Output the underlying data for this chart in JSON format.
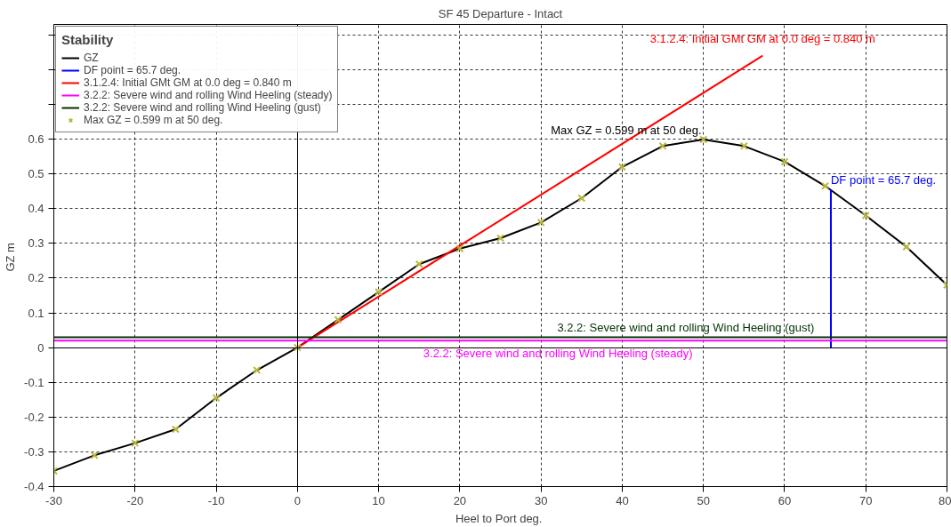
{
  "chart_data": {
    "type": "line",
    "title": "SF 45 Departure - Intact",
    "xlabel": "Heel to Port  deg.",
    "ylabel": "GZ  m",
    "legend_title": "Stability",
    "x": [
      -30,
      -25,
      -20,
      -15,
      -10,
      -5,
      0,
      5,
      10,
      15,
      20,
      25,
      30,
      35,
      40,
      45,
      50,
      55,
      60,
      65,
      70,
      75,
      80
    ],
    "series": [
      {
        "name": "GZ",
        "color": "#000000",
        "values": [
          -0.355,
          -0.31,
          -0.275,
          -0.235,
          -0.145,
          -0.065,
          0,
          0.08,
          0.16,
          0.24,
          0.285,
          0.315,
          0.36,
          0.43,
          0.52,
          0.58,
          0.599,
          0.58,
          0.535,
          0.465,
          0.38,
          0.29,
          0.18
        ]
      },
      {
        "name": "DF point = 65.7 deg.",
        "color": "#0000ff",
        "x": [
          65.7,
          65.7
        ],
        "values": [
          0,
          0.455
        ]
      },
      {
        "name": "3.1.2.4: Initial GMt GM at 0.0 deg = 0.840 m",
        "color": "#ff0000",
        "x": [
          0,
          57.3
        ],
        "values": [
          0,
          0.84
        ]
      },
      {
        "name": "3.2.2: Severe wind and rolling Wind Heeling (steady)",
        "color": "#ff00ff",
        "x": [
          -30,
          80
        ],
        "values": [
          0.02,
          0.02
        ]
      },
      {
        "name": "3.2.2: Severe wind and rolling Wind Heeling (gust)",
        "color": "#003300",
        "x": [
          -30,
          80
        ],
        "values": [
          0.03,
          0.03
        ]
      },
      {
        "name": "Max GZ = 0.599 m at 50 deg.",
        "type": "scatter",
        "marker": "cross",
        "color": "#b8b83c",
        "values": [
          -0.355,
          -0.31,
          -0.275,
          -0.235,
          -0.145,
          -0.065,
          0,
          0.08,
          0.16,
          0.24,
          0.285,
          0.315,
          0.36,
          0.43,
          0.52,
          0.58,
          0.599,
          0.58,
          0.535,
          0.465,
          0.38,
          0.29,
          0.18
        ]
      }
    ],
    "annotations": [
      {
        "text": "DF point = 65.7 deg.",
        "x": 65.7,
        "y": 0.455
      },
      "3.1.2.4: Initial GMt GM at 0.0 deg = 0.840 m",
      {
        "text": "3.2.2: Severe wind and rolling Wind Heeling (steady)",
        "x": 15.5,
        "y": 0.02
      },
      {
        "text": "3.2.2: Severe wind and rolling Wind Heeling (gust)",
        "x": 32,
        "y": 0.03
      },
      {
        "text": "Max GZ = 0.599 m at 50 deg.",
        "x": 50,
        "y": 0.599
      }
    ],
    "xlim": [
      -30,
      80
    ],
    "xticks": [
      -30,
      -20,
      -10,
      0,
      10,
      20,
      30,
      40,
      50,
      60,
      70,
      80
    ],
    "ylim": [
      -0.4,
      0.93
    ],
    "yticks": [
      -0.4,
      -0.3,
      -0.2,
      -0.1,
      0,
      0.1,
      0.2,
      0.3,
      0.4,
      0.5,
      0.6,
      {
        "value": 0.7,
        "label": null
      },
      {
        "value": 0.8,
        "label": null
      },
      {
        "value": 0.9,
        "label": null
      }
    ],
    "grid": true,
    "legend": "top left",
    "line_style": "solid"
  }
}
